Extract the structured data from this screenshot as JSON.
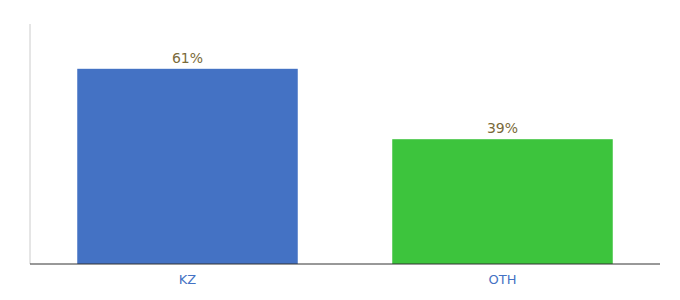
{
  "chart_data": {
    "type": "bar",
    "categories": [
      "KZ",
      "OTH"
    ],
    "values": [
      61,
      39
    ],
    "value_labels": [
      "61%",
      "39%"
    ],
    "colors": [
      "#4472c4",
      "#3dc43d"
    ],
    "ylim": [
      0,
      75
    ],
    "data_labels": true,
    "tick_labels": "x"
  }
}
